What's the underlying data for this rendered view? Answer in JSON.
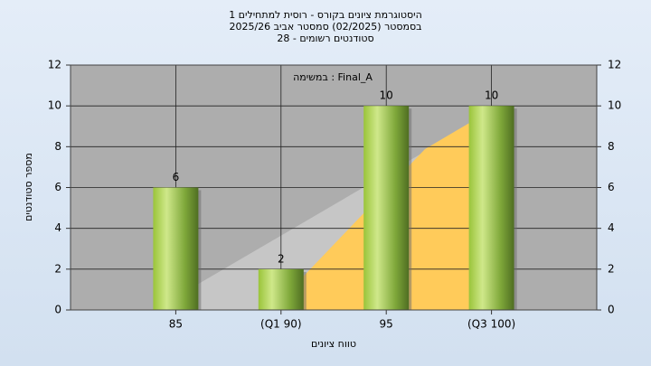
{
  "chart_data": {
    "type": "bar",
    "title": [
      "היסטוגרמת ציונים בקורס - רוסית למתחילים 1",
      "בסמסטר  (02/2025)  סמסטר אביב 2025/26",
      "סטודנטים רשומים - 28"
    ],
    "annotation": "במשימה : Final_A",
    "x_label": "טווח ציונים",
    "y_label": "מספר סטודנטים",
    "categories": [
      "85",
      "(Q1 90)",
      "95",
      "(Q3 100)"
    ],
    "values": [
      6,
      2,
      10,
      10
    ],
    "ylim": [
      0,
      12
    ],
    "yticks": [
      0,
      2,
      4,
      6,
      8,
      10,
      12
    ],
    "y2lim": [
      0,
      12
    ],
    "y2ticks": [
      0,
      2,
      4,
      6,
      8,
      10,
      12
    ],
    "grid": true
  }
}
